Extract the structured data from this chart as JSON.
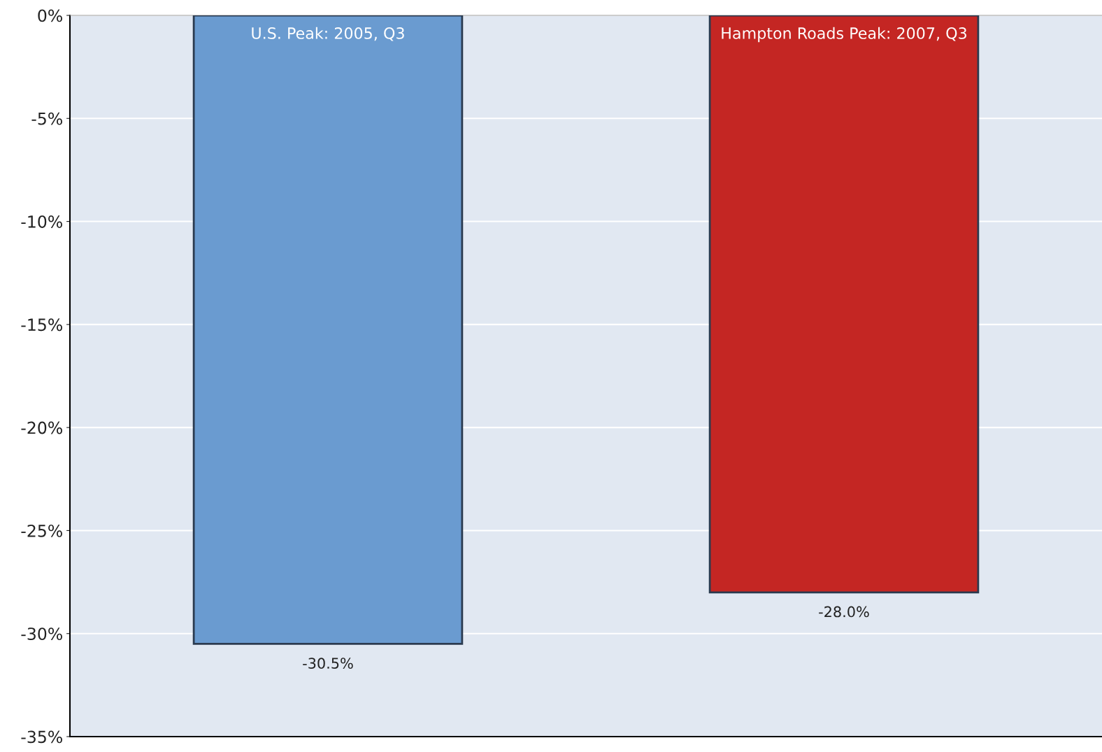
{
  "chart_data": {
    "type": "bar",
    "categories": [
      "U.S. Peak: 2005, Q3",
      "Hampton Roads Peak: 2007, Q3"
    ],
    "values": [
      -30.5,
      -28.0
    ],
    "colors": [
      "#6a9bd0",
      "#c42623"
    ],
    "value_labels": [
      "-30.5%",
      "-28.0%"
    ],
    "ylim": [
      -35,
      0
    ],
    "yticks": [
      {
        "value": 0,
        "label": "0%"
      },
      {
        "value": -5,
        "label": "-5%"
      },
      {
        "value": -10,
        "label": "-10%"
      },
      {
        "value": -15,
        "label": "-15%"
      },
      {
        "value": -20,
        "label": "-20%"
      },
      {
        "value": -25,
        "label": "-25%"
      },
      {
        "value": -30,
        "label": "-30%"
      },
      {
        "value": -35,
        "label": "-35%"
      }
    ],
    "grid": "y",
    "tick_labels": "y"
  }
}
